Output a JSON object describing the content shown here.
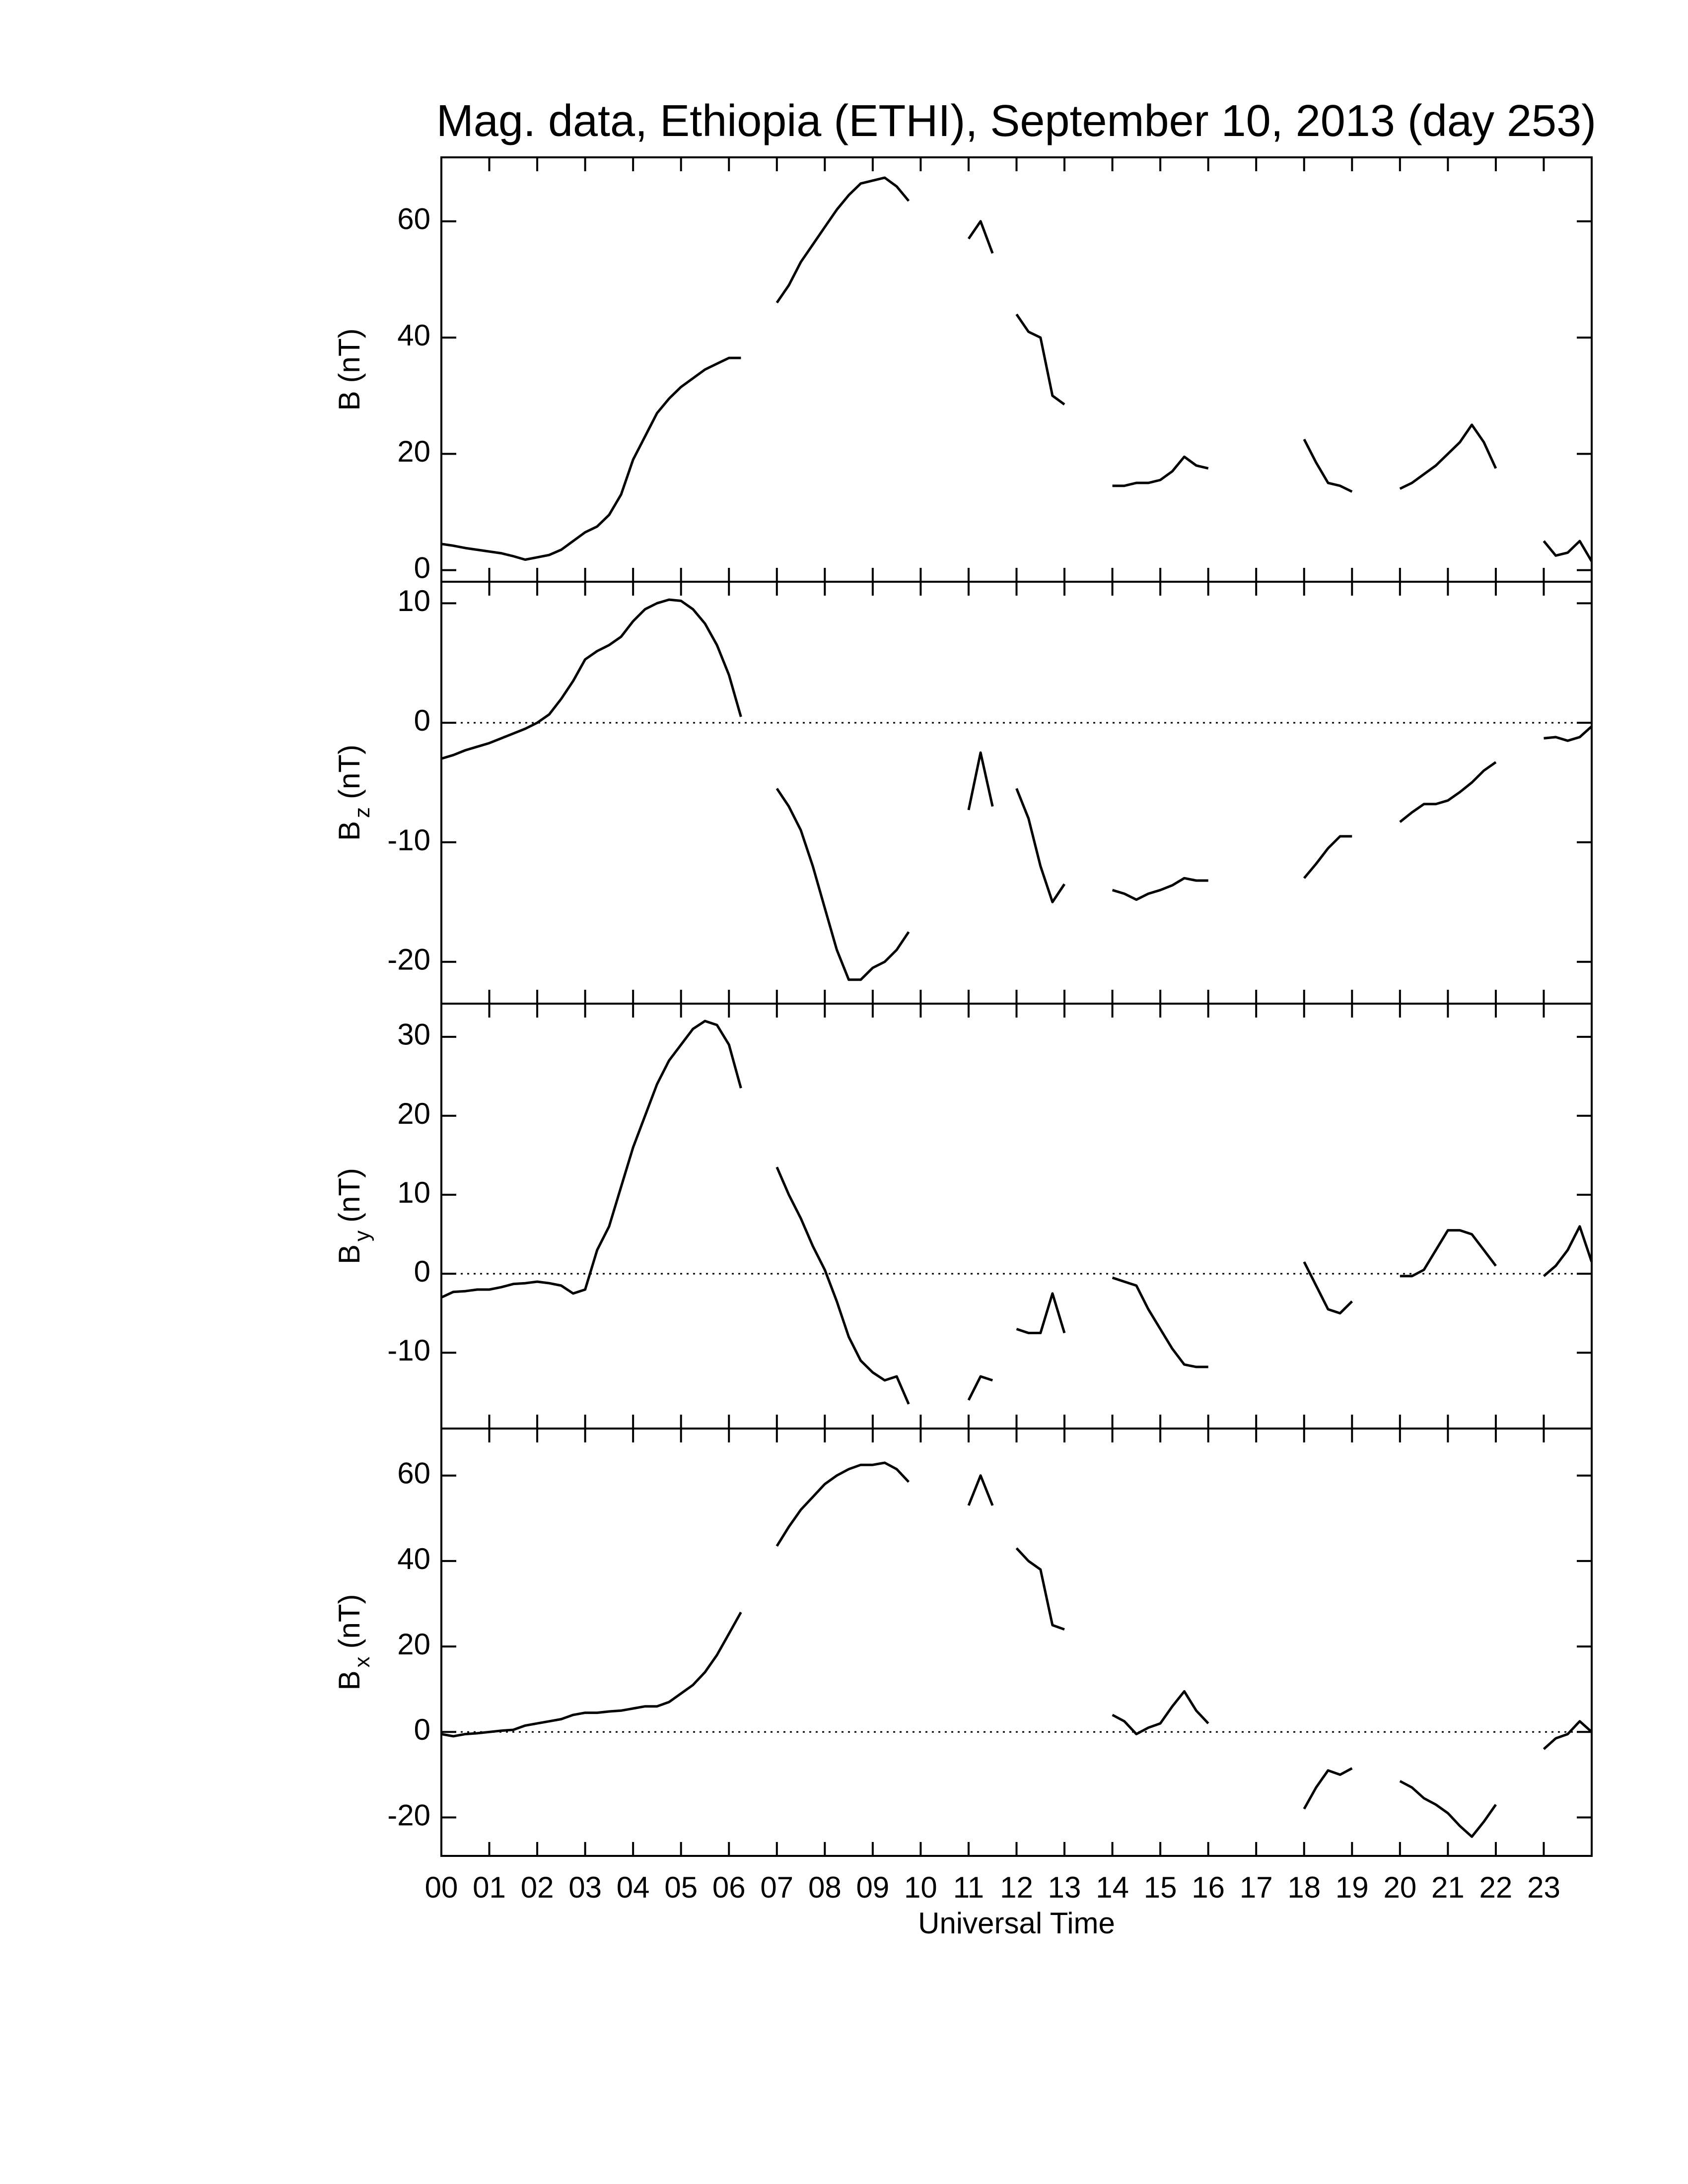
{
  "chart_data": [
    {
      "type": "line",
      "title": "Mag. data, Ethiopia (ETHI), September 10, 2013 (day 253)",
      "ylabel": "B",
      "ylabel_unit": "(nT)",
      "color": "#000000",
      "xlim": [
        0,
        24
      ],
      "xticks": [
        0,
        1,
        2,
        3,
        4,
        5,
        6,
        7,
        8,
        9,
        10,
        11,
        12,
        13,
        14,
        15,
        16,
        17,
        18,
        19,
        20,
        21,
        22,
        23
      ],
      "ylim": [
        -2,
        71
      ],
      "yticks": [
        0,
        20,
        40,
        60
      ],
      "zero_line": false,
      "x": [
        0,
        0.25,
        0.5,
        0.75,
        1,
        1.25,
        1.5,
        1.75,
        2,
        2.25,
        2.5,
        2.75,
        3,
        3.25,
        3.5,
        3.75,
        4,
        4.25,
        4.5,
        4.75,
        5,
        5.25,
        5.5,
        5.75,
        6,
        6.25,
        6.5,
        6.75,
        7,
        7.25,
        7.5,
        7.75,
        8,
        8.25,
        8.5,
        8.75,
        9,
        9.25,
        9.5,
        9.75,
        10,
        10.25,
        10.5,
        10.75,
        11,
        11.25,
        11.5,
        11.75,
        12,
        12.25,
        12.5,
        12.75,
        13,
        13.25,
        13.5,
        13.75,
        14,
        14.25,
        14.5,
        14.75,
        15,
        15.25,
        15.5,
        15.75,
        16,
        16.25,
        16.5,
        16.75,
        17,
        17.25,
        17.5,
        17.75,
        18,
        18.25,
        18.5,
        18.75,
        19,
        19.25,
        19.5,
        19.75,
        20,
        20.25,
        20.5,
        20.75,
        21,
        21.25,
        21.5,
        21.75,
        22,
        22.25,
        22.5,
        22.75,
        23,
        23.25,
        23.5,
        23.75,
        24
      ],
      "values": [
        4.5,
        4.2,
        3.8,
        3.5,
        3.2,
        2.9,
        2.4,
        1.8,
        2.2,
        2.6,
        3.5,
        5,
        6.5,
        7.5,
        9.5,
        13,
        19,
        23,
        27,
        29.5,
        31.5,
        33,
        34.5,
        35.5,
        36.5,
        36.5,
        null,
        null,
        46,
        49,
        53,
        56,
        59,
        62,
        64.5,
        66.5,
        67,
        67.5,
        66,
        63.5,
        null,
        null,
        null,
        null,
        57,
        60,
        54.5,
        null,
        44,
        41,
        40,
        30,
        28.5,
        null,
        null,
        null,
        14.5,
        14.5,
        15,
        15,
        15.5,
        17,
        19.5,
        18,
        17.5,
        null,
        null,
        null,
        null,
        null,
        null,
        null,
        22.5,
        18.5,
        15,
        14.5,
        13.5,
        null,
        null,
        null,
        14,
        15,
        16.5,
        18,
        20,
        22,
        25,
        22,
        17.5,
        null,
        null,
        null,
        5,
        2.5,
        3,
        5,
        1.5
      ]
    },
    {
      "type": "line",
      "ylabel": "B",
      "ylabel_sub": "z",
      "ylabel_unit": "(nT)",
      "color": "#000000",
      "xlim": [
        0,
        24
      ],
      "xticks": [
        0,
        1,
        2,
        3,
        4,
        5,
        6,
        7,
        8,
        9,
        10,
        11,
        12,
        13,
        14,
        15,
        16,
        17,
        18,
        19,
        20,
        21,
        22,
        23
      ],
      "ylim": [
        -23.5,
        11.8
      ],
      "yticks": [
        -20,
        -10,
        0,
        10
      ],
      "zero_line": true,
      "x": [
        0,
        0.25,
        0.5,
        0.75,
        1,
        1.25,
        1.5,
        1.75,
        2,
        2.25,
        2.5,
        2.75,
        3,
        3.25,
        3.5,
        3.75,
        4,
        4.25,
        4.5,
        4.75,
        5,
        5.25,
        5.5,
        5.75,
        6,
        6.25,
        6.5,
        6.75,
        7,
        7.25,
        7.5,
        7.75,
        8,
        8.25,
        8.5,
        8.75,
        9,
        9.25,
        9.5,
        9.75,
        10,
        10.25,
        10.5,
        10.75,
        11,
        11.25,
        11.5,
        11.75,
        12,
        12.25,
        12.5,
        12.75,
        13,
        13.25,
        13.5,
        13.75,
        14,
        14.25,
        14.5,
        14.75,
        15,
        15.25,
        15.5,
        15.75,
        16,
        16.25,
        16.5,
        16.75,
        17,
        17.25,
        17.5,
        17.75,
        18,
        18.25,
        18.5,
        18.75,
        19,
        19.25,
        19.5,
        19.75,
        20,
        20.25,
        20.5,
        20.75,
        21,
        21.25,
        21.5,
        21.75,
        22,
        22.25,
        22.5,
        22.75,
        23,
        23.25,
        23.5,
        23.75,
        24
      ],
      "values": [
        -3,
        -2.7,
        -2.3,
        -2,
        -1.7,
        -1.3,
        -0.9,
        -0.5,
        0,
        0.7,
        2,
        3.5,
        5.3,
        6,
        6.5,
        7.2,
        8.5,
        9.5,
        10,
        10.3,
        10.2,
        9.5,
        8.3,
        6.5,
        4,
        0.5,
        null,
        null,
        -5.5,
        -7,
        -9,
        -12,
        -15.5,
        -19,
        -21.5,
        -21.5,
        -20.5,
        -20,
        -19,
        -17.5,
        null,
        null,
        null,
        null,
        -7.3,
        -2.5,
        -7,
        null,
        -5.5,
        -8,
        -12,
        -15,
        -13.5,
        null,
        null,
        null,
        -14,
        -14.3,
        -14.8,
        -14.3,
        -14,
        -13.6,
        -13,
        -13.2,
        -13.2,
        null,
        null,
        null,
        null,
        null,
        null,
        null,
        -13,
        -11.8,
        -10.5,
        -9.5,
        -9.5,
        null,
        null,
        null,
        -8.3,
        -7.5,
        -6.8,
        -6.8,
        -6.5,
        -5.8,
        -5,
        -4,
        -3.3,
        null,
        null,
        null,
        -1.3,
        -1.2,
        -1.5,
        -1.2,
        -0.3
      ]
    },
    {
      "type": "line",
      "ylabel": "B",
      "ylabel_sub": "y",
      "ylabel_unit": "(nT)",
      "color": "#000000",
      "xlim": [
        0,
        24
      ],
      "xticks": [
        0,
        1,
        2,
        3,
        4,
        5,
        6,
        7,
        8,
        9,
        10,
        11,
        12,
        13,
        14,
        15,
        16,
        17,
        18,
        19,
        20,
        21,
        22,
        23
      ],
      "ylim": [
        -19.6,
        34.2
      ],
      "yticks": [
        -10,
        0,
        10,
        20,
        30
      ],
      "zero_line": true,
      "x": [
        0,
        0.25,
        0.5,
        0.75,
        1,
        1.25,
        1.5,
        1.75,
        2,
        2.25,
        2.5,
        2.75,
        3,
        3.25,
        3.5,
        3.75,
        4,
        4.25,
        4.5,
        4.75,
        5,
        5.25,
        5.5,
        5.75,
        6,
        6.25,
        6.5,
        6.75,
        7,
        7.25,
        7.5,
        7.75,
        8,
        8.25,
        8.5,
        8.75,
        9,
        9.25,
        9.5,
        9.75,
        10,
        10.25,
        10.5,
        10.75,
        11,
        11.25,
        11.5,
        11.75,
        12,
        12.25,
        12.5,
        12.75,
        13,
        13.25,
        13.5,
        13.75,
        14,
        14.25,
        14.5,
        14.75,
        15,
        15.25,
        15.5,
        15.75,
        16,
        16.25,
        16.5,
        16.75,
        17,
        17.25,
        17.5,
        17.75,
        18,
        18.25,
        18.5,
        18.75,
        19,
        19.25,
        19.5,
        19.75,
        20,
        20.25,
        20.5,
        20.75,
        21,
        21.25,
        21.5,
        21.75,
        22,
        22.25,
        22.5,
        22.75,
        23,
        23.25,
        23.5,
        23.75,
        24
      ],
      "values": [
        -3,
        -2.3,
        -2.2,
        -2,
        -2,
        -1.7,
        -1.3,
        -1.2,
        -1,
        -1.2,
        -1.5,
        -2.5,
        -2,
        3,
        6,
        11,
        16,
        20,
        24,
        27,
        29,
        31,
        32,
        31.5,
        29,
        23.5,
        null,
        null,
        13.5,
        10,
        7,
        3.5,
        0.5,
        -3.5,
        -8,
        -11,
        -12.5,
        -13.5,
        -13,
        -16.5,
        null,
        null,
        null,
        null,
        -16,
        -13,
        -13.5,
        null,
        -7,
        -7.5,
        -7.5,
        -2.5,
        -7.5,
        null,
        null,
        null,
        -0.5,
        -1,
        -1.5,
        -4.5,
        -7,
        -9.5,
        -11.5,
        -11.8,
        -11.8,
        null,
        null,
        null,
        null,
        null,
        null,
        null,
        1.5,
        -1.5,
        -4.5,
        -5,
        -3.5,
        null,
        null,
        null,
        -0.3,
        -0.3,
        0.5,
        3,
        5.5,
        5.5,
        5,
        3,
        1,
        null,
        null,
        null,
        -0.3,
        1,
        3,
        6,
        1.5
      ]
    },
    {
      "type": "line",
      "ylabel": "B",
      "ylabel_sub": "x",
      "ylabel_unit": "(nT)",
      "xlabel": "Universal Time",
      "color": "#000000",
      "xlim": [
        0,
        24
      ],
      "xticks": [
        {
          "value": 0,
          "label": "00"
        },
        {
          "value": 1,
          "label": "01"
        },
        {
          "value": 2,
          "label": "02"
        },
        {
          "value": 3,
          "label": "03"
        },
        {
          "value": 4,
          "label": "04"
        },
        {
          "value": 5,
          "label": "05"
        },
        {
          "value": 6,
          "label": "06"
        },
        {
          "value": 7,
          "label": "07"
        },
        {
          "value": 8,
          "label": "08"
        },
        {
          "value": 9,
          "label": "09"
        },
        10,
        11,
        12,
        13,
        14,
        15,
        16,
        17,
        18,
        19,
        20,
        21,
        22,
        23
      ],
      "ylim": [
        -29,
        71
      ],
      "yticks": [
        -20,
        0,
        20,
        40,
        60
      ],
      "zero_line": true,
      "x": [
        0,
        0.25,
        0.5,
        0.75,
        1,
        1.25,
        1.5,
        1.75,
        2,
        2.25,
        2.5,
        2.75,
        3,
        3.25,
        3.5,
        3.75,
        4,
        4.25,
        4.5,
        4.75,
        5,
        5.25,
        5.5,
        5.75,
        6,
        6.25,
        6.5,
        6.75,
        7,
        7.25,
        7.5,
        7.75,
        8,
        8.25,
        8.5,
        8.75,
        9,
        9.25,
        9.5,
        9.75,
        10,
        10.25,
        10.5,
        10.75,
        11,
        11.25,
        11.5,
        11.75,
        12,
        12.25,
        12.5,
        12.75,
        13,
        13.25,
        13.5,
        13.75,
        14,
        14.25,
        14.5,
        14.75,
        15,
        15.25,
        15.5,
        15.75,
        16,
        16.25,
        16.5,
        16.75,
        17,
        17.25,
        17.5,
        17.75,
        18,
        18.25,
        18.5,
        18.75,
        19,
        19.25,
        19.5,
        19.75,
        20,
        20.25,
        20.5,
        20.75,
        21,
        21.25,
        21.5,
        21.75,
        22,
        22.25,
        22.5,
        22.75,
        23,
        23.25,
        23.5,
        23.75,
        24
      ],
      "values": [
        -0.5,
        -1,
        -0.5,
        -0.3,
        0,
        0.3,
        0.5,
        1.5,
        2,
        2.5,
        3,
        4,
        4.5,
        4.5,
        4.8,
        5,
        5.5,
        6,
        6,
        7,
        9,
        11,
        14,
        18,
        23,
        28,
        null,
        null,
        43.5,
        48,
        52,
        55,
        58,
        60,
        61.5,
        62.5,
        62.5,
        63,
        61.5,
        58.5,
        null,
        null,
        null,
        null,
        53,
        60,
        53,
        null,
        43,
        40,
        38,
        25,
        24,
        null,
        null,
        null,
        4,
        2.5,
        -0.5,
        1,
        2,
        6,
        9.5,
        5,
        2,
        null,
        null,
        null,
        null,
        null,
        null,
        null,
        -18,
        -13,
        -9,
        -10,
        -8.5,
        null,
        null,
        null,
        -11.5,
        -13,
        -15.5,
        -17,
        -19,
        -22,
        -24.5,
        -21,
        -17,
        null,
        null,
        null,
        -4,
        -1.5,
        -0.5,
        2.5,
        0
      ]
    }
  ]
}
